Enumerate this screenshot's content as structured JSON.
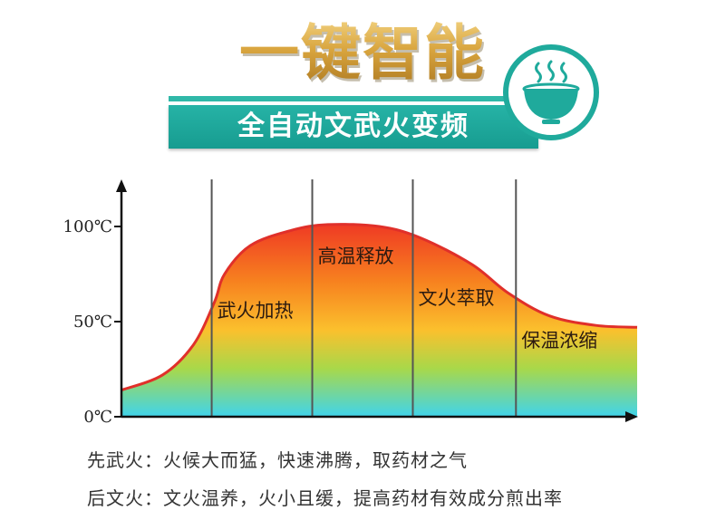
{
  "header": {
    "title": "一键智能",
    "subtitle": "全自动文武火变频"
  },
  "icon": "steaming-bowl-icon",
  "colors": {
    "gold": "#d7a43a",
    "teal": "#1faa9c",
    "curve": "#e0302a",
    "gradient_top": "#ef3a24",
    "gradient_mid": "#fbc02d",
    "gradient_bottom": "#40d4ec",
    "divider": "#555555"
  },
  "chart_data": {
    "type": "area",
    "title": "",
    "xlabel": "",
    "ylabel": "",
    "ylim": [
      0,
      100
    ],
    "yticks": [
      {
        "value": 0,
        "label": "0℃"
      },
      {
        "value": 50,
        "label": "50℃"
      },
      {
        "value": 100,
        "label": "100℃"
      }
    ],
    "series": [
      {
        "values": [
          {
            "x": 0,
            "y": 14
          },
          {
            "x": 0.08,
            "y": 22
          },
          {
            "x": 0.14,
            "y": 38
          },
          {
            "x": 0.18,
            "y": 60
          },
          {
            "x": 0.2,
            "y": 75
          },
          {
            "x": 0.25,
            "y": 90
          },
          {
            "x": 0.33,
            "y": 98
          },
          {
            "x": 0.4,
            "y": 101
          },
          {
            "x": 0.5,
            "y": 100
          },
          {
            "x": 0.58,
            "y": 94
          },
          {
            "x": 0.68,
            "y": 80
          },
          {
            "x": 0.75,
            "y": 65
          },
          {
            "x": 0.83,
            "y": 53
          },
          {
            "x": 0.92,
            "y": 48
          },
          {
            "x": 1.0,
            "y": 47
          }
        ]
      }
    ],
    "phases": [
      {
        "label": "武火加热",
        "start": 0.175,
        "end": 0.37
      },
      {
        "label": "高温释放",
        "start": 0.37,
        "end": 0.565
      },
      {
        "label": "文火萃取",
        "start": 0.565,
        "end": 0.765
      },
      {
        "label": "保温浓缩",
        "start": 0.765,
        "end": 1.0
      }
    ],
    "grid": false
  },
  "notes": [
    "先武火：火候大而猛，快速沸腾，取药材之气",
    "后文火：文火温养，火小且缓，提高药材有效成分煎出率"
  ]
}
